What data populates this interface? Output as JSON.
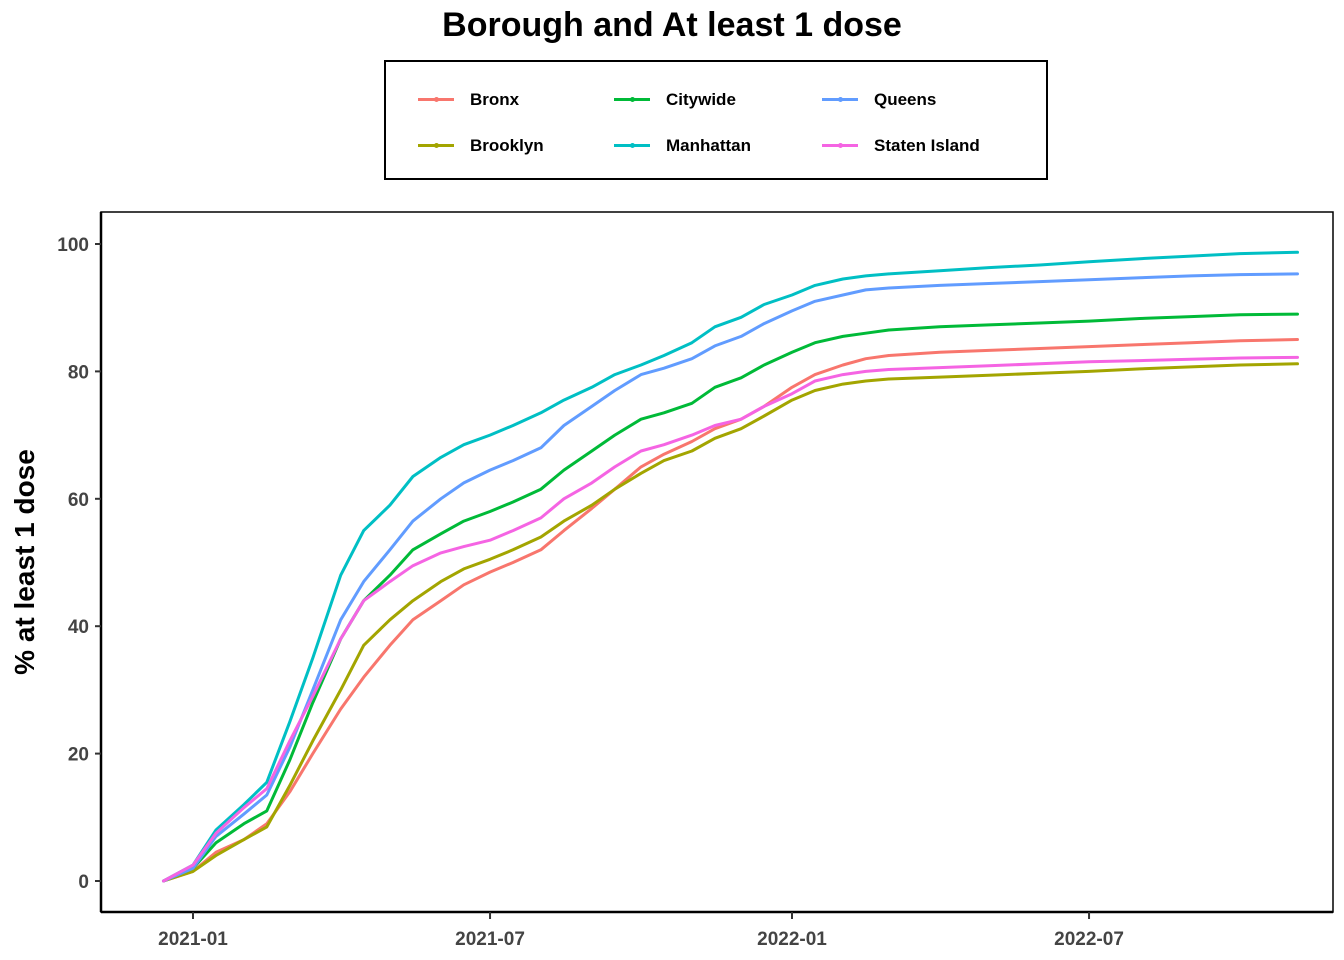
{
  "chart_data": {
    "type": "line",
    "title": "Borough and At least 1 dose",
    "xlabel": "",
    "ylabel": "% at least 1 dose",
    "x_type": "date",
    "x_ticks": [
      "2021-01",
      "2021-07",
      "2022-01",
      "2022-07"
    ],
    "y_ticks": [
      0,
      20,
      40,
      60,
      80,
      100
    ],
    "xlim": [
      "2020-11-20",
      "2022-11-30"
    ],
    "ylim": [
      -5,
      105
    ],
    "grid": false,
    "legend_position": "top",
    "series": [
      {
        "name": "Bronx",
        "color": "#F8766D",
        "x": [
          "2020-12-14",
          "2021-01-01",
          "2021-01-15",
          "2021-02-01",
          "2021-02-15",
          "2021-03-01",
          "2021-03-15",
          "2021-04-01",
          "2021-04-15",
          "2021-05-01",
          "2021-05-15",
          "2021-06-01",
          "2021-06-15",
          "2021-07-01",
          "2021-07-15",
          "2021-08-01",
          "2021-08-15",
          "2021-09-01",
          "2021-09-15",
          "2021-10-01",
          "2021-10-15",
          "2021-11-01",
          "2021-11-15",
          "2021-12-01",
          "2021-12-15",
          "2022-01-01",
          "2022-01-15",
          "2022-02-01",
          "2022-02-15",
          "2022-03-01",
          "2022-04-01",
          "2022-05-01",
          "2022-06-01",
          "2022-07-01",
          "2022-08-01",
          "2022-09-01",
          "2022-10-01",
          "2022-11-05"
        ],
        "y": [
          0,
          1.5,
          4.5,
          6.5,
          9,
          14,
          20,
          27,
          32,
          37,
          41,
          44,
          46.5,
          48.5,
          50,
          52,
          55,
          58.5,
          61.5,
          65,
          67,
          69,
          71,
          72.5,
          74.5,
          77.5,
          79.5,
          81,
          82,
          82.5,
          83,
          83.3,
          83.6,
          83.9,
          84.2,
          84.5,
          84.8,
          85
        ]
      },
      {
        "name": "Brooklyn",
        "color": "#A3A500",
        "x": [
          "2020-12-14",
          "2021-01-01",
          "2021-01-15",
          "2021-02-01",
          "2021-02-15",
          "2021-03-01",
          "2021-03-15",
          "2021-04-01",
          "2021-04-15",
          "2021-05-01",
          "2021-05-15",
          "2021-06-01",
          "2021-06-15",
          "2021-07-01",
          "2021-07-15",
          "2021-08-01",
          "2021-08-15",
          "2021-09-01",
          "2021-09-15",
          "2021-10-01",
          "2021-10-15",
          "2021-11-01",
          "2021-11-15",
          "2021-12-01",
          "2021-12-15",
          "2022-01-01",
          "2022-01-15",
          "2022-02-01",
          "2022-02-15",
          "2022-03-01",
          "2022-04-01",
          "2022-05-01",
          "2022-06-01",
          "2022-07-01",
          "2022-08-01",
          "2022-09-01",
          "2022-10-01",
          "2022-11-05"
        ],
        "y": [
          0,
          1.5,
          4,
          6.5,
          8.5,
          15,
          22,
          30,
          37,
          41,
          44,
          47,
          49,
          50.5,
          52,
          54,
          56.5,
          59,
          61.5,
          64,
          66,
          67.5,
          69.5,
          71,
          73,
          75.5,
          77,
          78,
          78.5,
          78.8,
          79.1,
          79.4,
          79.7,
          80,
          80.4,
          80.7,
          81,
          81.2
        ]
      },
      {
        "name": "Citywide",
        "color": "#00BA38",
        "x": [
          "2020-12-14",
          "2021-01-01",
          "2021-01-15",
          "2021-02-01",
          "2021-02-15",
          "2021-03-01",
          "2021-03-15",
          "2021-04-01",
          "2021-04-15",
          "2021-05-01",
          "2021-05-15",
          "2021-06-01",
          "2021-06-15",
          "2021-07-01",
          "2021-07-15",
          "2021-08-01",
          "2021-08-15",
          "2021-09-01",
          "2021-09-15",
          "2021-10-01",
          "2021-10-15",
          "2021-11-01",
          "2021-11-15",
          "2021-12-01",
          "2021-12-15",
          "2022-01-01",
          "2022-01-15",
          "2022-02-01",
          "2022-02-15",
          "2022-03-01",
          "2022-04-01",
          "2022-05-01",
          "2022-06-01",
          "2022-07-01",
          "2022-08-01",
          "2022-09-01",
          "2022-10-01",
          "2022-11-05"
        ],
        "y": [
          0,
          2,
          6,
          9,
          11,
          19,
          28,
          38,
          44,
          48,
          52,
          54.5,
          56.5,
          58,
          59.5,
          61.5,
          64.5,
          67.5,
          70,
          72.5,
          73.5,
          75,
          77.5,
          79,
          81,
          83,
          84.5,
          85.5,
          86,
          86.5,
          87,
          87.3,
          87.6,
          87.9,
          88.3,
          88.6,
          88.9,
          89
        ]
      },
      {
        "name": "Manhattan",
        "color": "#00BFC4",
        "x": [
          "2020-12-14",
          "2021-01-01",
          "2021-01-15",
          "2021-02-01",
          "2021-02-15",
          "2021-03-01",
          "2021-03-15",
          "2021-04-01",
          "2021-04-15",
          "2021-05-01",
          "2021-05-15",
          "2021-06-01",
          "2021-06-15",
          "2021-07-01",
          "2021-07-15",
          "2021-08-01",
          "2021-08-15",
          "2021-09-01",
          "2021-09-15",
          "2021-10-01",
          "2021-10-15",
          "2021-11-01",
          "2021-11-15",
          "2021-12-01",
          "2021-12-15",
          "2022-01-01",
          "2022-01-15",
          "2022-02-01",
          "2022-02-15",
          "2022-03-01",
          "2022-04-01",
          "2022-05-01",
          "2022-06-01",
          "2022-07-01",
          "2022-08-01",
          "2022-09-01",
          "2022-10-01",
          "2022-11-05"
        ],
        "y": [
          0,
          2.5,
          8,
          12,
          15.5,
          25,
          35,
          48,
          55,
          59,
          63.5,
          66.5,
          68.5,
          70,
          71.5,
          73.5,
          75.5,
          77.5,
          79.5,
          81,
          82.5,
          84.5,
          87,
          88.5,
          90.5,
          92,
          93.5,
          94.5,
          95,
          95.3,
          95.8,
          96.3,
          96.7,
          97.2,
          97.7,
          98.1,
          98.5,
          98.7
        ]
      },
      {
        "name": "Queens",
        "color": "#619CFF",
        "x": [
          "2020-12-14",
          "2021-01-01",
          "2021-01-15",
          "2021-02-01",
          "2021-02-15",
          "2021-03-01",
          "2021-03-15",
          "2021-04-01",
          "2021-04-15",
          "2021-05-01",
          "2021-05-15",
          "2021-06-01",
          "2021-06-15",
          "2021-07-01",
          "2021-07-15",
          "2021-08-01",
          "2021-08-15",
          "2021-09-01",
          "2021-09-15",
          "2021-10-01",
          "2021-10-15",
          "2021-11-01",
          "2021-11-15",
          "2021-12-01",
          "2021-12-15",
          "2022-01-01",
          "2022-01-15",
          "2022-02-01",
          "2022-02-15",
          "2022-03-01",
          "2022-04-01",
          "2022-05-01",
          "2022-06-01",
          "2022-07-01",
          "2022-08-01",
          "2022-09-01",
          "2022-10-01",
          "2022-11-05"
        ],
        "y": [
          0,
          2,
          7,
          10.5,
          13.5,
          21,
          30,
          41,
          47,
          52,
          56.5,
          60,
          62.5,
          64.5,
          66,
          68,
          71.5,
          74.5,
          77,
          79.5,
          80.5,
          82,
          84,
          85.5,
          87.5,
          89.5,
          91,
          92,
          92.8,
          93.1,
          93.5,
          93.8,
          94.1,
          94.4,
          94.7,
          95,
          95.2,
          95.3
        ]
      },
      {
        "name": "Staten Island",
        "color": "#F564E3",
        "x": [
          "2020-12-14",
          "2021-01-01",
          "2021-01-15",
          "2021-02-01",
          "2021-02-15",
          "2021-03-01",
          "2021-03-15",
          "2021-04-01",
          "2021-04-15",
          "2021-05-01",
          "2021-05-15",
          "2021-06-01",
          "2021-06-15",
          "2021-07-01",
          "2021-07-15",
          "2021-08-01",
          "2021-08-15",
          "2021-09-01",
          "2021-09-15",
          "2021-10-01",
          "2021-10-15",
          "2021-11-01",
          "2021-11-15",
          "2021-12-01",
          "2021-12-15",
          "2022-01-01",
          "2022-01-15",
          "2022-02-01",
          "2022-02-15",
          "2022-03-01",
          "2022-04-01",
          "2022-05-01",
          "2022-06-01",
          "2022-07-01",
          "2022-08-01",
          "2022-09-01",
          "2022-10-01",
          "2022-11-05"
        ],
        "y": [
          0,
          2.5,
          7.5,
          11.5,
          14.5,
          22,
          29,
          38,
          44,
          47,
          49.5,
          51.5,
          52.5,
          53.5,
          55,
          57,
          60,
          62.5,
          65,
          67.5,
          68.5,
          70,
          71.5,
          72.5,
          74.5,
          76.5,
          78.5,
          79.5,
          80,
          80.3,
          80.6,
          80.9,
          81.2,
          81.5,
          81.7,
          81.9,
          82.1,
          82.2
        ]
      }
    ]
  }
}
